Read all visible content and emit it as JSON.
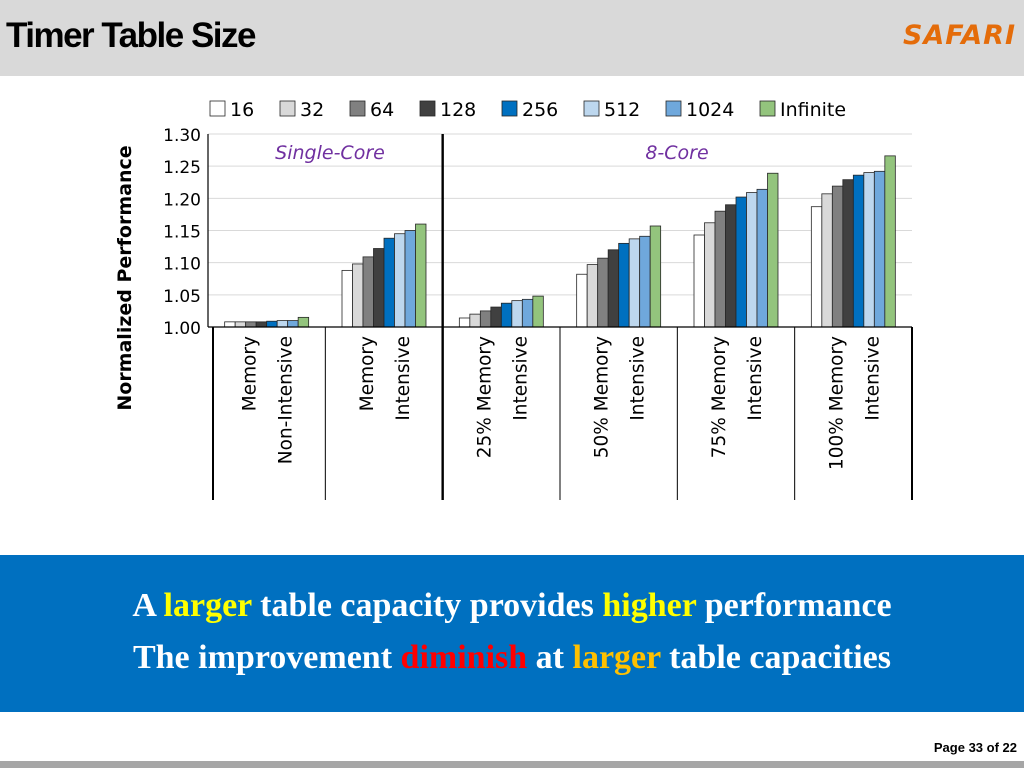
{
  "slide": {
    "title": "Timer Table Size",
    "logo_text": "SAFARI",
    "page_number": "Page 33 of 22"
  },
  "colors": {
    "header_bg": "#d9d9d9",
    "logo": "#e46c0a",
    "banner_bg": "#0070c0",
    "banner_text": "#ffffff",
    "highlight_yellow": "#ffff00",
    "highlight_gold": "#ffc000",
    "highlight_red": "#ff0000",
    "panel_label": "#7030a0"
  },
  "banner": {
    "line1": [
      {
        "text": "A ",
        "color": "#ffffff"
      },
      {
        "text": "larger",
        "color": "#ffff00"
      },
      {
        "text": " table capacity provides ",
        "color": "#ffffff"
      },
      {
        "text": "higher",
        "color": "#ffff00"
      },
      {
        "text": " performance",
        "color": "#ffffff"
      }
    ],
    "line2": [
      {
        "text": "The improvement ",
        "color": "#ffffff"
      },
      {
        "text": "diminish",
        "color": "#ff0000"
      },
      {
        "text": " at ",
        "color": "#ffffff"
      },
      {
        "text": "larger",
        "color": "#ffc000"
      },
      {
        "text": " table capacities",
        "color": "#ffffff"
      }
    ]
  },
  "chart_data": {
    "type": "bar",
    "ylabel": "Normalized Performance",
    "ylim": [
      1.0,
      1.3
    ],
    "yticks": [
      "1.00",
      "1.05",
      "1.10",
      "1.15",
      "1.20",
      "1.25",
      "1.30"
    ],
    "grid": true,
    "legend_position": "top",
    "panels": [
      "Single-Core",
      "8-Core"
    ],
    "categories": [
      {
        "lines": [
          "Memory",
          "Non-Intensive"
        ],
        "panel": 0
      },
      {
        "lines": [
          "Memory",
          "Intensive"
        ],
        "panel": 0
      },
      {
        "lines": [
          "25% Memory",
          "Intensive"
        ],
        "panel": 1
      },
      {
        "lines": [
          "50% Memory",
          "Intensive"
        ],
        "panel": 1
      },
      {
        "lines": [
          "75% Memory",
          "Intensive"
        ],
        "panel": 1
      },
      {
        "lines": [
          "100% Memory",
          "Intensive"
        ],
        "panel": 1
      }
    ],
    "series": [
      {
        "name": "16",
        "color": "#ffffff",
        "values": [
          1.008,
          1.088,
          1.014,
          1.082,
          1.143,
          1.187
        ]
      },
      {
        "name": "32",
        "color": "#d9d9d9",
        "values": [
          1.008,
          1.098,
          1.02,
          1.097,
          1.162,
          1.207
        ]
      },
      {
        "name": "64",
        "color": "#808080",
        "values": [
          1.008,
          1.109,
          1.025,
          1.107,
          1.18,
          1.219
        ]
      },
      {
        "name": "128",
        "color": "#404040",
        "values": [
          1.008,
          1.122,
          1.031,
          1.12,
          1.19,
          1.229
        ]
      },
      {
        "name": "256",
        "color": "#0070c0",
        "values": [
          1.009,
          1.138,
          1.037,
          1.13,
          1.202,
          1.236
        ]
      },
      {
        "name": "512",
        "color": "#bdd7ee",
        "values": [
          1.01,
          1.145,
          1.041,
          1.137,
          1.209,
          1.24
        ]
      },
      {
        "name": "1024",
        "color": "#6fa8dc",
        "values": [
          1.01,
          1.15,
          1.043,
          1.141,
          1.214,
          1.242
        ]
      },
      {
        "name": "Infinite",
        "color": "#93c47d",
        "values": [
          1.015,
          1.16,
          1.048,
          1.157,
          1.239,
          1.266
        ]
      }
    ]
  }
}
